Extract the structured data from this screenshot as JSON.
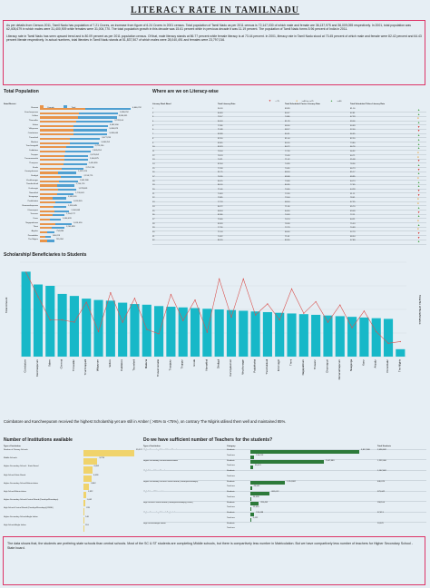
{
  "title": "LITERACY RATE IN TAMILNADU",
  "intro": {
    "p1": "As per details from Census 2011, Tamil Nadu has population of 7.21 Crores, an increase from figure of 6.24 Crores in 2001 census. Total population of Tamil Nadu as per 2011 census is 72,147,030 of which male and female are 36,137,975 and 36,009,055 respectively. In 2001, total population was 62,405,679 in which males were 31,400,909 while females were 31,004,770. The total population growth in this decade was 15.61 percent while in previous decade it was 11.19 percent. The population of Tamil Nadu forms 5.96 percent of India in 2011.",
    "p2": "Literacy rate in Tamil Nadu has seen upward trend and is 80.09 percent as per 2011 population census. Of that, male literacy stands at 86.77 percent while female literacy is at 73.44 percent. In 2001, literacy rate in Tamil Nadu stood at 73.45 percent of which male and female were 82.42 percent and 64.43 percent literate respectively. In actual numbers, total literates in Tamil Nadu stands at 51,837,507 of which males were 28,040,491 and females were 23,797,016."
  },
  "population": {
    "section_title": "Total Population",
    "legend": [
      {
        "label": "Female",
        "color": "#e8944a"
      },
      {
        "label": "Total",
        "color": "#4f9fd1"
      }
    ],
    "header": "State/District",
    "rows": [
      {
        "name": "Chennai",
        "total": "4,646,732"
      },
      {
        "name": "Kancheepuram",
        "total": "3,998,252"
      },
      {
        "name": "Vellore",
        "total": "3,936,331"
      },
      {
        "name": "Thiruvallur",
        "total": "3,728,104"
      },
      {
        "name": "Salem",
        "total": "3,482,056"
      },
      {
        "name": "Villupuram",
        "total": "3,458,873"
      },
      {
        "name": "Coimbatore",
        "total": "3,458,045"
      },
      {
        "name": "Tirunelveli",
        "total": "3,077,233"
      },
      {
        "name": "Madurai",
        "total": "3,038,252"
      },
      {
        "name": "Tiruchirappalli",
        "total": "2,722,290"
      },
      {
        "name": "Cuddalore",
        "total": "2,605,914"
      },
      {
        "name": "Tiruppur",
        "total": "2,479,052"
      },
      {
        "name": "Tiruvannamalai",
        "total": "2,464,875"
      },
      {
        "name": "Thanjavur",
        "total": "2,405,890"
      },
      {
        "name": "Erode",
        "total": "2,251,744"
      },
      {
        "name": "Kanniyakumari",
        "total": "1,870,374"
      },
      {
        "name": "Dindigul",
        "total": "2,159,775"
      },
      {
        "name": "Virudhunagar",
        "total": "1,942,288"
      },
      {
        "name": "Thoothukkudi",
        "total": "1,750,176"
      },
      {
        "name": "Krishnagiri",
        "total": "1,879,809"
      },
      {
        "name": "Namakkal",
        "total": "1,726,601"
      },
      {
        "name": "Sivaganga",
        "total": "1,339,101"
      },
      {
        "name": "Pudukkottai",
        "total": "1,618,345"
      },
      {
        "name": "Ramanathapuram",
        "total": "1,353,445"
      },
      {
        "name": "Dharmapuri",
        "total": "1,506,843"
      },
      {
        "name": "Tiruvarur",
        "total": "1,264,277"
      },
      {
        "name": "Karur",
        "total": "1,064,493"
      },
      {
        "name": "Nagapattinam",
        "total": "1,616,450"
      },
      {
        "name": "Theni",
        "total": "1,245,899"
      },
      {
        "name": "Ariyalur",
        "total": "754,894"
      },
      {
        "name": "Perambalur",
        "total": "565,223"
      },
      {
        "name": "The Nilgiris",
        "total": "735,394"
      }
    ]
  },
  "literacy": {
    "section_title": "Where are we on Literacy-wise",
    "legend": [
      {
        "label": "< 75",
        "color": "#d7302b"
      },
      {
        "label": ">=80 to <=75",
        "color": "#e8a33a"
      },
      {
        "label": ">=80",
        "color": "#4aa64a"
      }
    ],
    "headers": [
      "Literacy Rank Band",
      "Total Literacy Rate",
      "Total Scheduled Castes Literacy Rate",
      "Total Scheduled Tribes Literacy Rate"
    ],
    "rows": [
      [
        "1",
        "90.18",
        "89.99",
        "81.16"
      ],
      [
        "2",
        "84.49",
        "80.57",
        "62.81"
      ],
      [
        "3",
        "79.17",
        "74.86",
        "67.29"
      ],
      [
        "4",
        "84.03",
        "81.29",
        "69.06"
      ],
      [
        "5",
        "72.86",
        "68.00",
        "60.69"
      ],
      [
        "6",
        "71.88",
        "68.17",
        "52.00"
      ],
      [
        "7",
        "83.98",
        "80.01",
        "66.65"
      ],
      [
        "8",
        "82.50",
        "81.04",
        "82.20"
      ],
      [
        "9",
        "83.45",
        "80.16",
        "73.80"
      ],
      [
        "10",
        "83.23",
        "80.72",
        "66.76"
      ],
      [
        "11",
        "78.04",
        "77.39",
        "56.92"
      ],
      [
        "12",
        "78.19",
        "75.39",
        "60.71"
      ],
      [
        "13",
        "74.21",
        "71.02",
        "55.08"
      ],
      [
        "14",
        "82.64",
        "74.99",
        "78.56"
      ],
      [
        "15",
        "72.58",
        "70.65",
        "46.73"
      ],
      [
        "16",
        "91.75",
        "88.34",
        "85.17"
      ],
      [
        "17",
        "76.26",
        "69.08",
        "69.95"
      ],
      [
        "18",
        "80.15",
        "73.69",
        "64.73"
      ],
      [
        "19",
        "86.16",
        "80.36",
        "77.65"
      ],
      [
        "20",
        "71.46",
        "70.60",
        "44.28"
      ],
      [
        "21",
        "74.63",
        "72.93",
        "51.11"
      ],
      [
        "22",
        "79.85",
        "73.04",
        "78.41"
      ],
      [
        "23",
        "77.19",
        "68.54",
        "67.35"
      ],
      [
        "24",
        "80.72",
        "71.36",
        "65.70"
      ],
      [
        "25",
        "68.54",
        "64.50",
        "49.09"
      ],
      [
        "26",
        "82.86",
        "74.03",
        "72.11"
      ],
      [
        "27",
        "75.60",
        "70.74",
        "64.21"
      ],
      [
        "28",
        "83.59",
        "78.38",
        "75.53"
      ],
      [
        "29",
        "77.26",
        "72.79",
        "70.69"
      ],
      [
        "30",
        "71.34",
        "66.40",
        "52.79"
      ],
      [
        "31",
        "74.32",
        "71.61",
        "68.34"
      ],
      [
        "32",
        "85.20",
        "83.26",
        "57.89"
      ]
    ]
  },
  "scholarship": {
    "section_title": "Scholarship/ Beneficiaries to Students",
    "left_axis_title": "Total Amount",
    "right_axis_title": "Total No of Beneficiaries"
  },
  "chart_data": {
    "type": "bar",
    "title": "Scholarship/ Beneficiaries to Students",
    "categories": [
      "Coimbatore",
      "Kancheepuram",
      "Salem",
      "Chennai",
      "Thiruvallur",
      "Tiruchirappalli",
      "Villupuram",
      "Vellore",
      "Cuddalore",
      "Tirunelveli",
      "Madurai",
      "Tiruvannamalai",
      "Thanjavur",
      "Tiruppur",
      "Erode",
      "Namakkal",
      "Dindigul",
      "Kanniyakumari",
      "Virudhunagar",
      "Pudukkottai",
      "Thoothukkudi",
      "Krishnagiri",
      "Theni",
      "Nagapattinam",
      "Tiruvarur",
      "Dharmapuri",
      "Ramanathapuram",
      "Sivaganga",
      "Karur",
      "Ariyalur",
      "Perambalur",
      "The Nilgiris"
    ],
    "series": [
      {
        "name": "Total Amount",
        "values": [
          126,
          107,
          105,
          93,
          90,
          86,
          84,
          83,
          80,
          78,
          77,
          75,
          74,
          73,
          72,
          71,
          70,
          69,
          68,
          67,
          66,
          65,
          64,
          63,
          62,
          61,
          60,
          59,
          58,
          57,
          56,
          11
        ]
      },
      {
        "name": "Total No of Beneficiaries",
        "values": [
          1.52,
          1.08,
          0.66,
          0.66,
          0.62,
          0.98,
          0.45,
          1.15,
          0.62,
          1.05,
          0.49,
          0.41,
          1.12,
          0.65,
          1.02,
          0.44,
          1.4,
          0.71,
          1.4,
          0.75,
          0.95,
          0.66,
          1.22,
          0.78,
          0.99,
          0.62,
          0.93,
          0.52,
          0.82,
          0.45,
          0.24,
          0.27
        ]
      }
    ]
  },
  "scholarship_note": "Coimbatore and Kancheepuram received the highest Scholarship yet are still in Amber ( >85% to <75%), on contrary The Nilgiris utilised them well and maintained 85%.",
  "institutions": {
    "section_title": "Number of Institutions available",
    "header": "Type of Institution",
    "rows": [
      {
        "type": "Number of Primary Schools",
        "value": "35,374"
      },
      {
        "type": "Middle Schools",
        "value": "9,759"
      },
      {
        "type": "Higher Secondary School - State Board",
        "value": "6,082"
      },
      {
        "type": "High School-State Board",
        "value": "5,628"
      },
      {
        "type": "Higher Secondary School-Matriculation",
        "value": "3,862"
      },
      {
        "type": "High School-Matriculation",
        "value": "1,822"
      },
      {
        "type": "Higher Secondary School-Central Board (Kendriya/Navodaya)",
        "value": "1,062"
      },
      {
        "type": "High School-Central Board (Kendriya/Navodaya)(CBSE)",
        "value": "870"
      },
      {
        "type": "Higher Secondary School-Anglo Indian",
        "value": "146"
      },
      {
        "type": "High School-Anglo Indian",
        "value": "118"
      }
    ]
  },
  "teachers": {
    "section_title": "Do we have sufficient number of Teachers for the students?",
    "headers": [
      "Type of Institution",
      "Category",
      "",
      "Total Students"
    ],
    "rows": [
      {
        "type": "Higher Secondary School-State Board",
        "category": "Students",
        "label": "3,817,846",
        "students": "2,096,842"
      },
      {
        "type": "",
        "category": "Teachers",
        "label": "136,213",
        "students": ""
      },
      {
        "type": "Higher Secondary School-Matriculation",
        "category": "Students",
        "label": "2,567,883",
        "students": "1,232,000"
      },
      {
        "type": "",
        "category": "Teachers",
        "label": "95,021",
        "students": ""
      },
      {
        "type": "High School-State Board",
        "category": "Students",
        "label": "",
        "students": "1,167,462"
      },
      {
        "type": "",
        "category": "Teachers",
        "label": "",
        "students": ""
      },
      {
        "type": "Higher Secondary School-Central Board (Kendriya/Navodaya)",
        "category": "Students",
        "label": "1,214,802",
        "students": "446,076"
      },
      {
        "type": "",
        "category": "Teachers",
        "label": "49,562",
        "students": ""
      },
      {
        "type": "High School-Matriculation",
        "category": "Students",
        "label": "681,012",
        "students": "373,442"
      },
      {
        "type": "",
        "category": "Teachers",
        "label": "26,438",
        "students": ""
      },
      {
        "type": "High School-Central Board (Kendriya/Navodaya)(CBSE)",
        "category": "Students",
        "label": "293,452",
        "students": "158,104"
      },
      {
        "type": "",
        "category": "Teachers",
        "label": "12,016",
        "students": ""
      },
      {
        "type": "Higher Secondary School-Anglo Indian",
        "category": "Students",
        "label": "135,088",
        "students": "57,413"
      },
      {
        "type": "",
        "category": "Teachers",
        "label": "5,422",
        "students": ""
      },
      {
        "type": "High School-Anglo Indian",
        "category": "Students",
        "label": "",
        "students": "24,076"
      },
      {
        "type": "",
        "category": "Teachers",
        "label": "",
        "students": ""
      }
    ]
  },
  "bottom_note": "The data shows that, the students are prefering state schools than central schools. Most of the SC & ST students are completing Middle schools, but there is compartively less number in Matriculation. But we have compartively less number of teachers for Higher Secondary School - State board."
}
